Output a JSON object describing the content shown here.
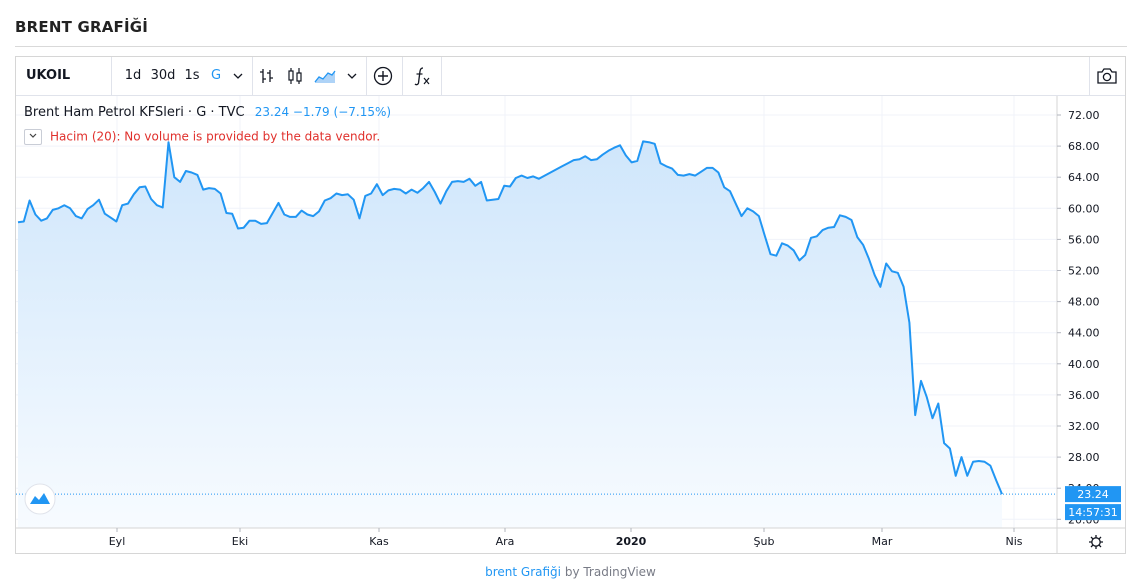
{
  "page": {
    "title": "BRENT GRAFİĞİ",
    "credit_link": "brent Grafiği",
    "credit_by": "by TradingView"
  },
  "toolbar": {
    "symbol": "UKOIL",
    "intervals": [
      "1d",
      "30d",
      "1s",
      "G"
    ],
    "active_interval": "G",
    "icons": [
      "interval-dropdown-chevron-icon",
      "bars-style-icon",
      "candles-style-icon",
      "area-style-icon",
      "style-dropdown-chevron-icon",
      "add-compare-icon",
      "indicators-fx-icon",
      "snapshot-camera-icon"
    ]
  },
  "legend": {
    "name": "Brent Ham Petrol KFSleri · G · TVC",
    "last": "23.24",
    "change": "−1.79",
    "change_pct": "(−7.15%)",
    "volume_note": "Hacim (20): No volume is provided by the data vendor."
  },
  "colors": {
    "line": "#2196f3",
    "area_top": "#cfe6fb",
    "area_bottom": "#f7fbff",
    "grid": "#f0f3fa",
    "price_tag": "#2196f3"
  },
  "chart_data": {
    "type": "area",
    "series": [
      {
        "values": [
          58.2,
          58.3,
          61.0,
          59.2,
          58.4,
          58.7,
          59.8,
          60.0,
          60.4,
          60.0,
          59.0,
          58.7,
          59.9,
          60.4,
          61.1,
          59.3,
          58.8,
          58.3,
          60.4,
          60.6,
          61.8,
          62.7,
          62.8,
          61.2,
          60.4,
          60.1,
          68.5,
          64.0,
          63.4,
          64.8,
          64.6,
          64.3,
          62.4,
          62.6,
          62.5,
          61.9,
          59.4,
          59.3,
          57.4,
          57.5,
          58.4,
          58.4,
          58.0,
          58.1,
          59.4,
          60.7,
          59.2,
          58.9,
          58.9,
          59.7,
          59.2,
          59.0,
          59.6,
          61.0,
          61.3,
          61.9,
          61.7,
          61.8,
          61.1,
          58.7,
          61.6,
          61.9,
          63.1,
          61.7,
          62.3,
          62.5,
          62.4,
          61.9,
          62.4,
          62.0,
          62.6,
          63.4,
          62.1,
          60.6,
          62.2,
          63.4,
          63.5,
          63.4,
          63.8,
          62.9,
          63.4,
          61.0,
          61.1,
          61.2,
          62.9,
          62.8,
          63.9,
          64.2,
          63.9,
          64.1,
          63.8,
          64.2,
          64.6,
          65.0,
          65.4,
          65.8,
          66.2,
          66.3,
          66.7,
          66.2,
          66.3,
          66.9,
          67.4,
          67.8,
          68.1,
          66.8,
          65.9,
          66.1,
          68.6,
          68.5,
          68.3,
          65.8,
          65.4,
          65.1,
          64.3,
          64.2,
          64.4,
          64.2,
          64.7,
          65.2,
          65.2,
          64.6,
          62.7,
          62.2,
          60.6,
          59.0,
          60.0,
          59.6,
          59.0,
          56.5,
          54.1,
          53.9,
          55.5,
          55.2,
          54.6,
          53.3,
          54.0,
          56.2,
          56.4,
          57.2,
          57.5,
          57.6,
          59.1,
          58.9,
          58.5,
          56.3,
          55.3,
          53.5,
          51.4,
          49.9,
          52.9,
          51.9,
          51.7,
          49.9,
          45.3,
          33.4,
          37.8,
          35.7,
          33.0,
          34.9,
          29.8,
          29.1,
          25.6,
          28.0,
          25.6,
          27.4,
          27.5,
          27.4,
          26.9,
          25.0,
          23.24
        ]
      }
    ],
    "x_labels": [
      "Eyl",
      "Eki",
      "Kas",
      "Ara",
      "2020",
      "Şub",
      "Mar",
      "Nis"
    ],
    "y_ticks": [
      "72.00",
      "68.00",
      "64.00",
      "60.00",
      "56.00",
      "52.00",
      "48.00",
      "44.00",
      "40.00",
      "36.00",
      "32.00",
      "28.00",
      "24.00",
      "20.00"
    ],
    "ylim": [
      20,
      72
    ],
    "last_price_label": "23.24",
    "countdown_label": "14:57:31",
    "grid": true
  }
}
